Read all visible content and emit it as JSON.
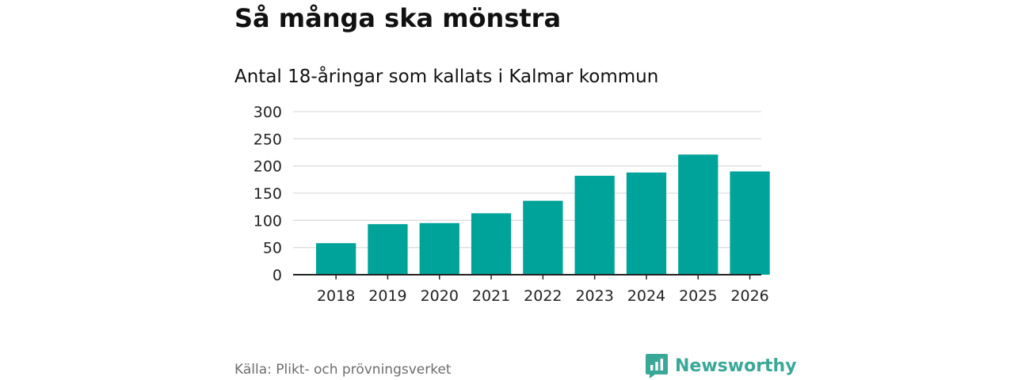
{
  "title": "Så många ska mönstra",
  "subtitle": "Antal 18-åringar som kallats i Kalmar kommun",
  "source": "Källa: Plikt- och prövningsverket",
  "brand": {
    "name": "Newsworthy",
    "color": "#3aa897",
    "icon": "newsworthy-logo-icon"
  },
  "colors": {
    "bar": "#00a399",
    "grid": "#dddddd",
    "axis": "#222222",
    "text": "#222222"
  },
  "chart_data": {
    "type": "bar",
    "categories": [
      "2018",
      "2019",
      "2020",
      "2021",
      "2022",
      "2023",
      "2024",
      "2025",
      "2026"
    ],
    "values": [
      58,
      93,
      95,
      113,
      136,
      182,
      188,
      221,
      190
    ],
    "ylim": [
      0,
      300
    ],
    "yticks": [
      0,
      50,
      100,
      150,
      200,
      250,
      300
    ],
    "grid": true,
    "legend": "none"
  }
}
